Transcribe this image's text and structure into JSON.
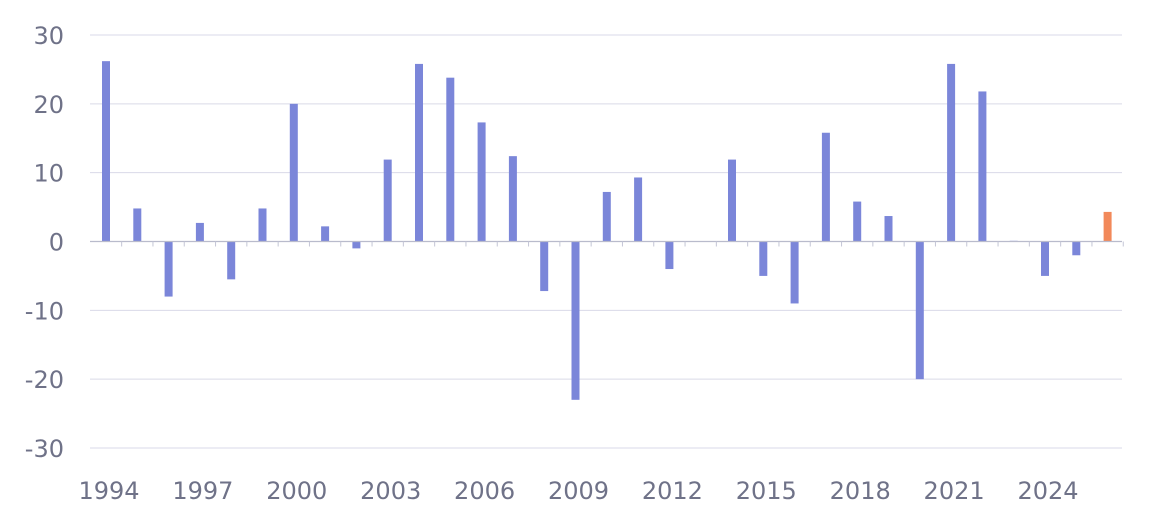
{
  "chart_data": {
    "type": "bar",
    "title": "",
    "xlabel": "",
    "ylabel": "",
    "ylim": [
      -30,
      30
    ],
    "yticks": [
      30,
      20,
      10,
      0,
      -10,
      -20,
      -30
    ],
    "xtick_labels": [
      "1994",
      "1997",
      "2000",
      "2003",
      "2006",
      "2009",
      "2012",
      "2015",
      "2018",
      "2021",
      "2024"
    ],
    "grid": true,
    "legend": "none",
    "colors": {
      "bar": "#7b86d9",
      "highlight": "#f2895a"
    },
    "categories": [
      "1994",
      "1995",
      "1996",
      "1997",
      "1998",
      "1999",
      "2000",
      "2001",
      "2002",
      "2003",
      "2004",
      "2005",
      "2006",
      "2007",
      "2008",
      "2009",
      "2010",
      "2011",
      "2012",
      "2013",
      "2014",
      "2015",
      "2016",
      "2017",
      "2018",
      "2019",
      "2020",
      "2021",
      "2022",
      "2023",
      "2024",
      "2025",
      "2026"
    ],
    "values": [
      26.2,
      4.8,
      -8.0,
      2.7,
      -5.5,
      4.8,
      20.0,
      2.2,
      -1.0,
      11.9,
      25.8,
      23.8,
      17.3,
      12.4,
      -7.2,
      -23.0,
      7.2,
      9.3,
      -4.0,
      0.0,
      11.9,
      -5.0,
      -9.0,
      15.8,
      5.8,
      3.7,
      -20.0,
      25.8,
      21.8,
      0.1,
      -5.0,
      -2.0,
      4.3
    ],
    "highlight_category": "2026"
  }
}
